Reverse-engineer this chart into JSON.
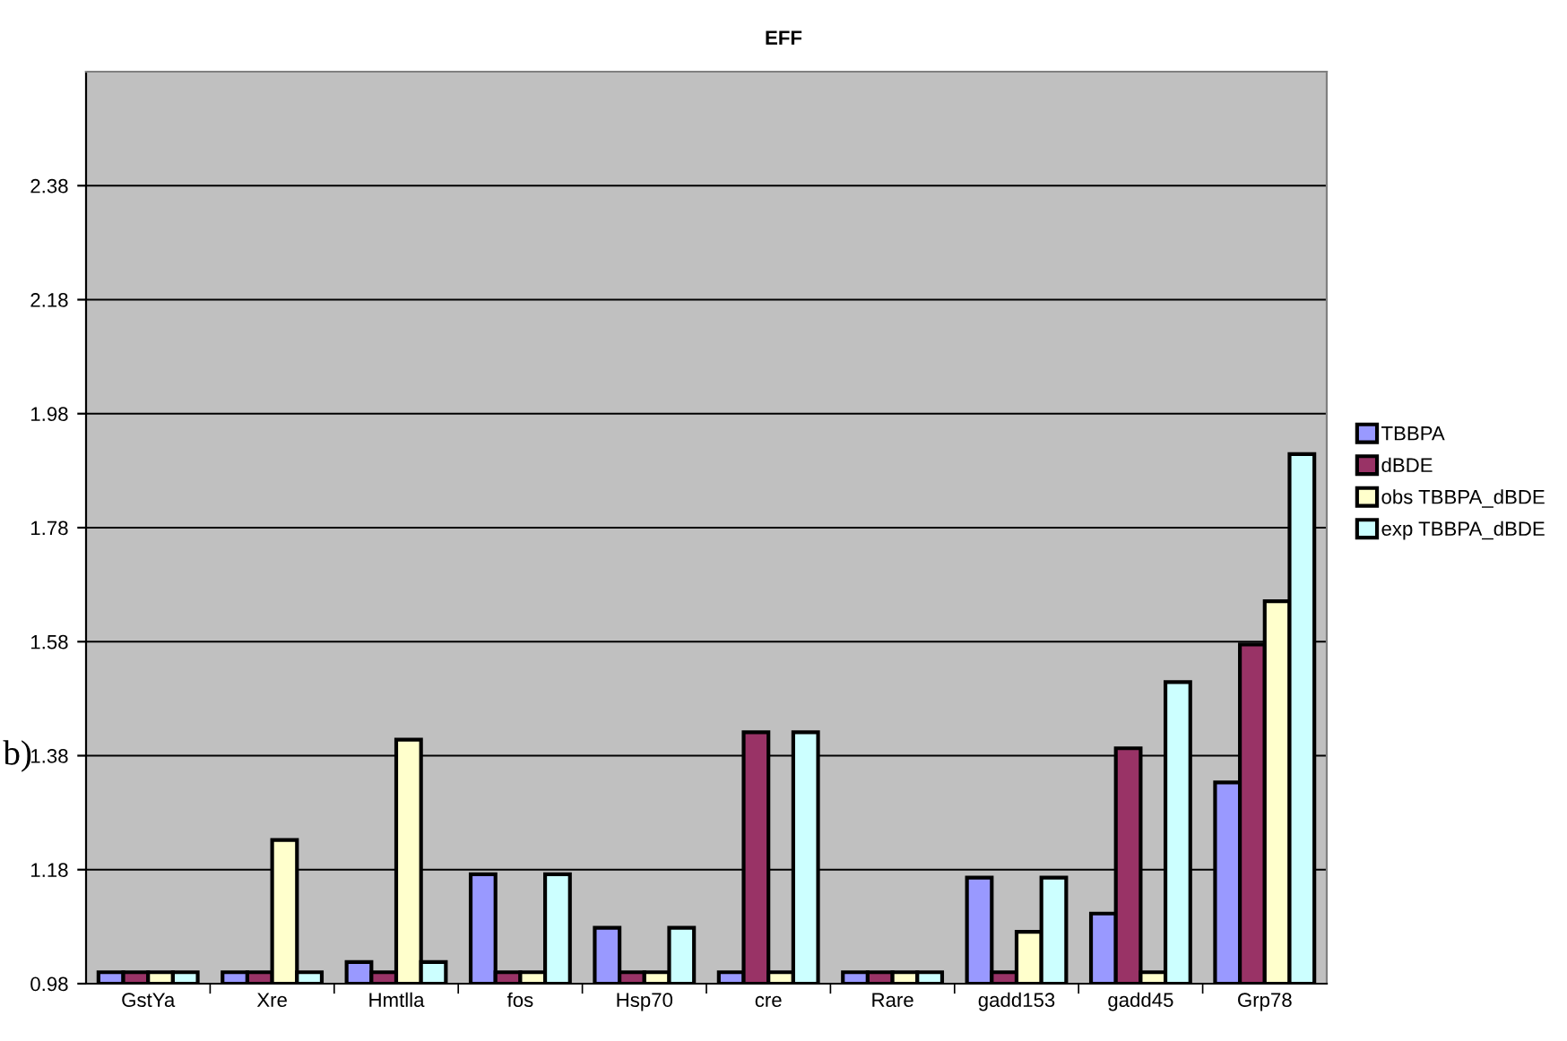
{
  "chart_data": {
    "type": "bar",
    "title": "EFF",
    "categories": [
      "GstYa",
      "Xre",
      "Hmtlla",
      "fos",
      "Hsp70",
      "cre",
      "Rare",
      "gadd153",
      "gadd45",
      "Grp78"
    ],
    "series": [
      {
        "name": "TBBPA",
        "color": "#9999ff",
        "values": [
          1.0,
          1.0,
          1.018,
          1.172,
          1.078,
          1.0,
          1.0,
          1.166,
          1.103,
          1.333
        ]
      },
      {
        "name": "dBDE",
        "color": "#993366",
        "values": [
          1.0,
          1.0,
          1.0,
          1.0,
          1.0,
          1.421,
          1.0,
          1.0,
          1.393,
          1.575
        ]
      },
      {
        "name": "obs TBBPA_dBDE",
        "color": "#ffffcc",
        "values": [
          1.0,
          1.232,
          1.408,
          1.0,
          1.0,
          1.0,
          1.0,
          1.071,
          1.0,
          1.651
        ]
      },
      {
        "name": "exp TBBPA_dBDE",
        "color": "#ccffff",
        "values": [
          1.0,
          1.0,
          1.018,
          1.172,
          1.078,
          1.421,
          1.0,
          1.166,
          1.509,
          1.909
        ]
      }
    ],
    "ylim": [
      0.98,
      2.58
    ],
    "yticks": [
      0.98,
      1.18,
      1.38,
      1.58,
      1.78,
      1.98,
      2.18,
      2.38
    ],
    "grid": "y",
    "legend": "right",
    "annotations": [
      "b)"
    ]
  }
}
